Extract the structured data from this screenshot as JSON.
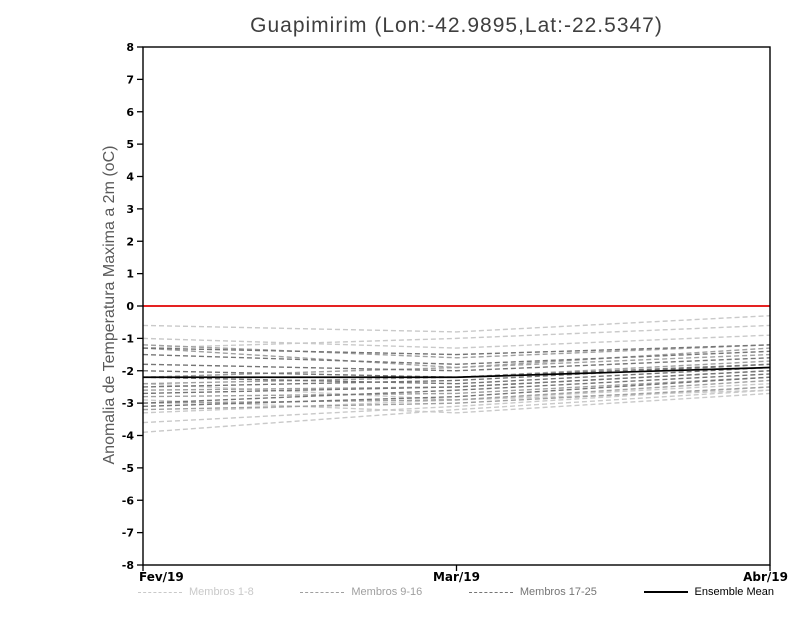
{
  "chart_data": {
    "type": "line",
    "title": "Guapimirim (Lon:-42.9895,Lat:-22.5347)",
    "ylabel": "Anomalia de Temperatura Maxima a 2m (oC)",
    "xlabel": "",
    "x_categories": [
      "Fev/19",
      "Mar/19",
      "Abr/19"
    ],
    "ylim": [
      -8,
      8
    ],
    "ytick_step": 1,
    "grid": false,
    "zero_line": {
      "value": 0,
      "color": "#e52222"
    },
    "groups": [
      {
        "name": "Membros 1-8",
        "color": "#c9c9c9",
        "style": "dashed",
        "members": [
          [
            -0.6,
            -0.8,
            -0.3
          ],
          [
            -1.0,
            -1.3,
            -0.9
          ],
          [
            -1.3,
            -1.0,
            -0.6
          ],
          [
            -2.4,
            -2.9,
            -2.6
          ],
          [
            -2.9,
            -3.3,
            -2.7
          ],
          [
            -3.3,
            -2.9,
            -2.4
          ],
          [
            -3.6,
            -3.1,
            -2.5
          ],
          [
            -3.9,
            -3.2,
            -2.6
          ]
        ]
      },
      {
        "name": "Membros 9-16",
        "color": "#9f9f9f",
        "style": "dashed",
        "members": [
          [
            -1.2,
            -1.6,
            -1.2
          ],
          [
            -1.3,
            -1.9,
            -1.5
          ],
          [
            -2.2,
            -1.9,
            -1.3
          ],
          [
            -2.4,
            -2.2,
            -1.7
          ],
          [
            -2.6,
            -2.5,
            -2.0
          ],
          [
            -2.8,
            -2.7,
            -2.2
          ],
          [
            -3.0,
            -2.9,
            -2.3
          ],
          [
            -3.2,
            -3.0,
            -2.5
          ]
        ]
      },
      {
        "name": "Membros 17-25",
        "color": "#757575",
        "style": "dashed",
        "members": [
          [
            -1.3,
            -1.5,
            -1.2
          ],
          [
            -1.5,
            -1.8,
            -1.4
          ],
          [
            -1.8,
            -2.0,
            -1.6
          ],
          [
            -2.0,
            -2.2,
            -1.8
          ],
          [
            -2.2,
            -2.4,
            -1.9
          ],
          [
            -2.5,
            -2.3,
            -1.8
          ],
          [
            -2.7,
            -2.5,
            -2.0
          ],
          [
            -3.0,
            -2.6,
            -2.1
          ],
          [
            -3.1,
            -2.8,
            -2.2
          ]
        ]
      }
    ],
    "ensemble_mean": {
      "name": "Ensemble Mean",
      "color": "#000000",
      "style": "solid",
      "values": [
        -2.2,
        -2.2,
        -1.9
      ]
    },
    "legend": [
      {
        "label": "Membros 1-8",
        "color": "#c9c9c9",
        "dash": true
      },
      {
        "label": "Membros 9-16",
        "color": "#9f9f9f",
        "dash": true
      },
      {
        "label": "Membros 17-25",
        "color": "#757575",
        "dash": true
      },
      {
        "label": "Ensemble Mean",
        "color": "#000000",
        "dash": false
      }
    ],
    "legend_position": "bottom"
  }
}
